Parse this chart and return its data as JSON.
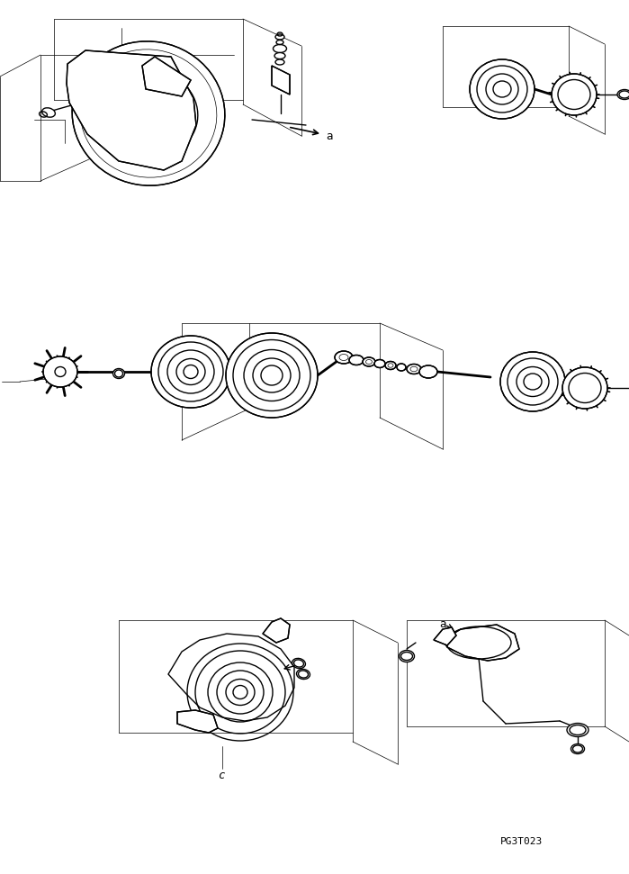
{
  "bg_color": "#ffffff",
  "line_color": "#000000",
  "line_width": 1.0,
  "thin_line": 0.5,
  "fig_width": 6.99,
  "fig_height": 9.71,
  "dpi": 100,
  "part_code": "PG3T023",
  "label_a": "a",
  "label_c": "c"
}
